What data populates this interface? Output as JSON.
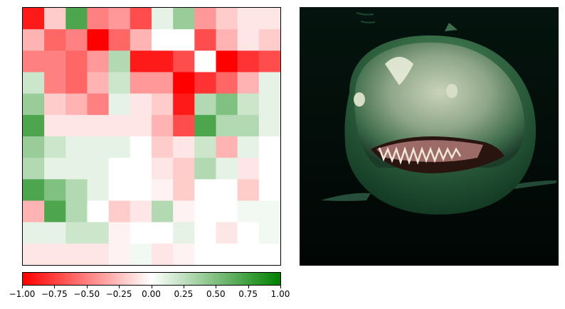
{
  "chart_data": [
    {
      "type": "heatmap",
      "rows": 12,
      "cols": 12,
      "color_scale": {
        "min": -1.0,
        "max": 1.0,
        "negative_color": "#ff0000",
        "zero_color": "#ffffff",
        "positive_color": "#008000"
      },
      "colorbar": {
        "orientation": "horizontal",
        "ticks": [
          -1.0,
          -0.75,
          -0.5,
          -0.25,
          0.0,
          0.25,
          0.5,
          0.75,
          1.0
        ],
        "tick_labels": [
          "−1.00",
          "−0.75",
          "−0.50",
          "−0.25",
          "0.00",
          "0.25",
          "0.50",
          "0.75",
          "1.00"
        ]
      },
      "values": [
        [
          -0.9,
          -0.2,
          0.7,
          -0.5,
          -0.4,
          -0.7,
          0.1,
          0.4,
          -0.4,
          -0.2,
          -0.1,
          -0.1
        ],
        [
          -0.3,
          -0.6,
          -0.5,
          -1.0,
          -0.6,
          -0.3,
          0.0,
          0.0,
          -0.7,
          -0.3,
          -0.1,
          -0.2
        ],
        [
          -0.5,
          -0.5,
          -0.6,
          -0.4,
          0.3,
          -0.9,
          -0.9,
          -0.7,
          0.0,
          -1.0,
          -0.8,
          -0.7
        ],
        [
          0.2,
          -0.5,
          -0.6,
          -0.3,
          0.2,
          -0.4,
          -0.4,
          -1.0,
          -0.8,
          -0.6,
          -0.3,
          0.1
        ],
        [
          0.4,
          -0.2,
          -0.3,
          -0.5,
          0.1,
          -0.1,
          -0.2,
          -0.9,
          0.3,
          0.5,
          0.2,
          0.1
        ],
        [
          0.7,
          -0.1,
          -0.1,
          -0.1,
          -0.1,
          -0.1,
          -0.3,
          -0.7,
          0.7,
          0.3,
          0.3,
          0.1
        ],
        [
          0.4,
          0.2,
          0.1,
          0.1,
          0.1,
          0.0,
          -0.2,
          -0.1,
          0.2,
          -0.3,
          0.1,
          0.0
        ],
        [
          0.3,
          0.1,
          0.1,
          0.1,
          0.0,
          0.0,
          -0.1,
          -0.2,
          0.3,
          0.1,
          -0.1,
          0.0
        ],
        [
          0.7,
          0.5,
          0.3,
          0.1,
          0.0,
          0.0,
          -0.05,
          -0.2,
          0.0,
          0.0,
          -0.2,
          0.0
        ],
        [
          -0.3,
          0.7,
          0.3,
          0.0,
          -0.2,
          -0.1,
          0.3,
          -0.05,
          0.0,
          0.0,
          0.05,
          0.05
        ],
        [
          0.1,
          0.1,
          0.2,
          0.2,
          -0.05,
          0.0,
          0.0,
          0.1,
          0.0,
          -0.1,
          0.0,
          0.05
        ],
        [
          -0.1,
          -0.1,
          -0.1,
          -0.1,
          -0.05,
          0.05,
          -0.1,
          -0.05,
          0.0,
          0.0,
          0.0,
          0.0
        ]
      ]
    }
  ],
  "photo": {
    "subject": "shark",
    "icon": "shark-photo"
  }
}
